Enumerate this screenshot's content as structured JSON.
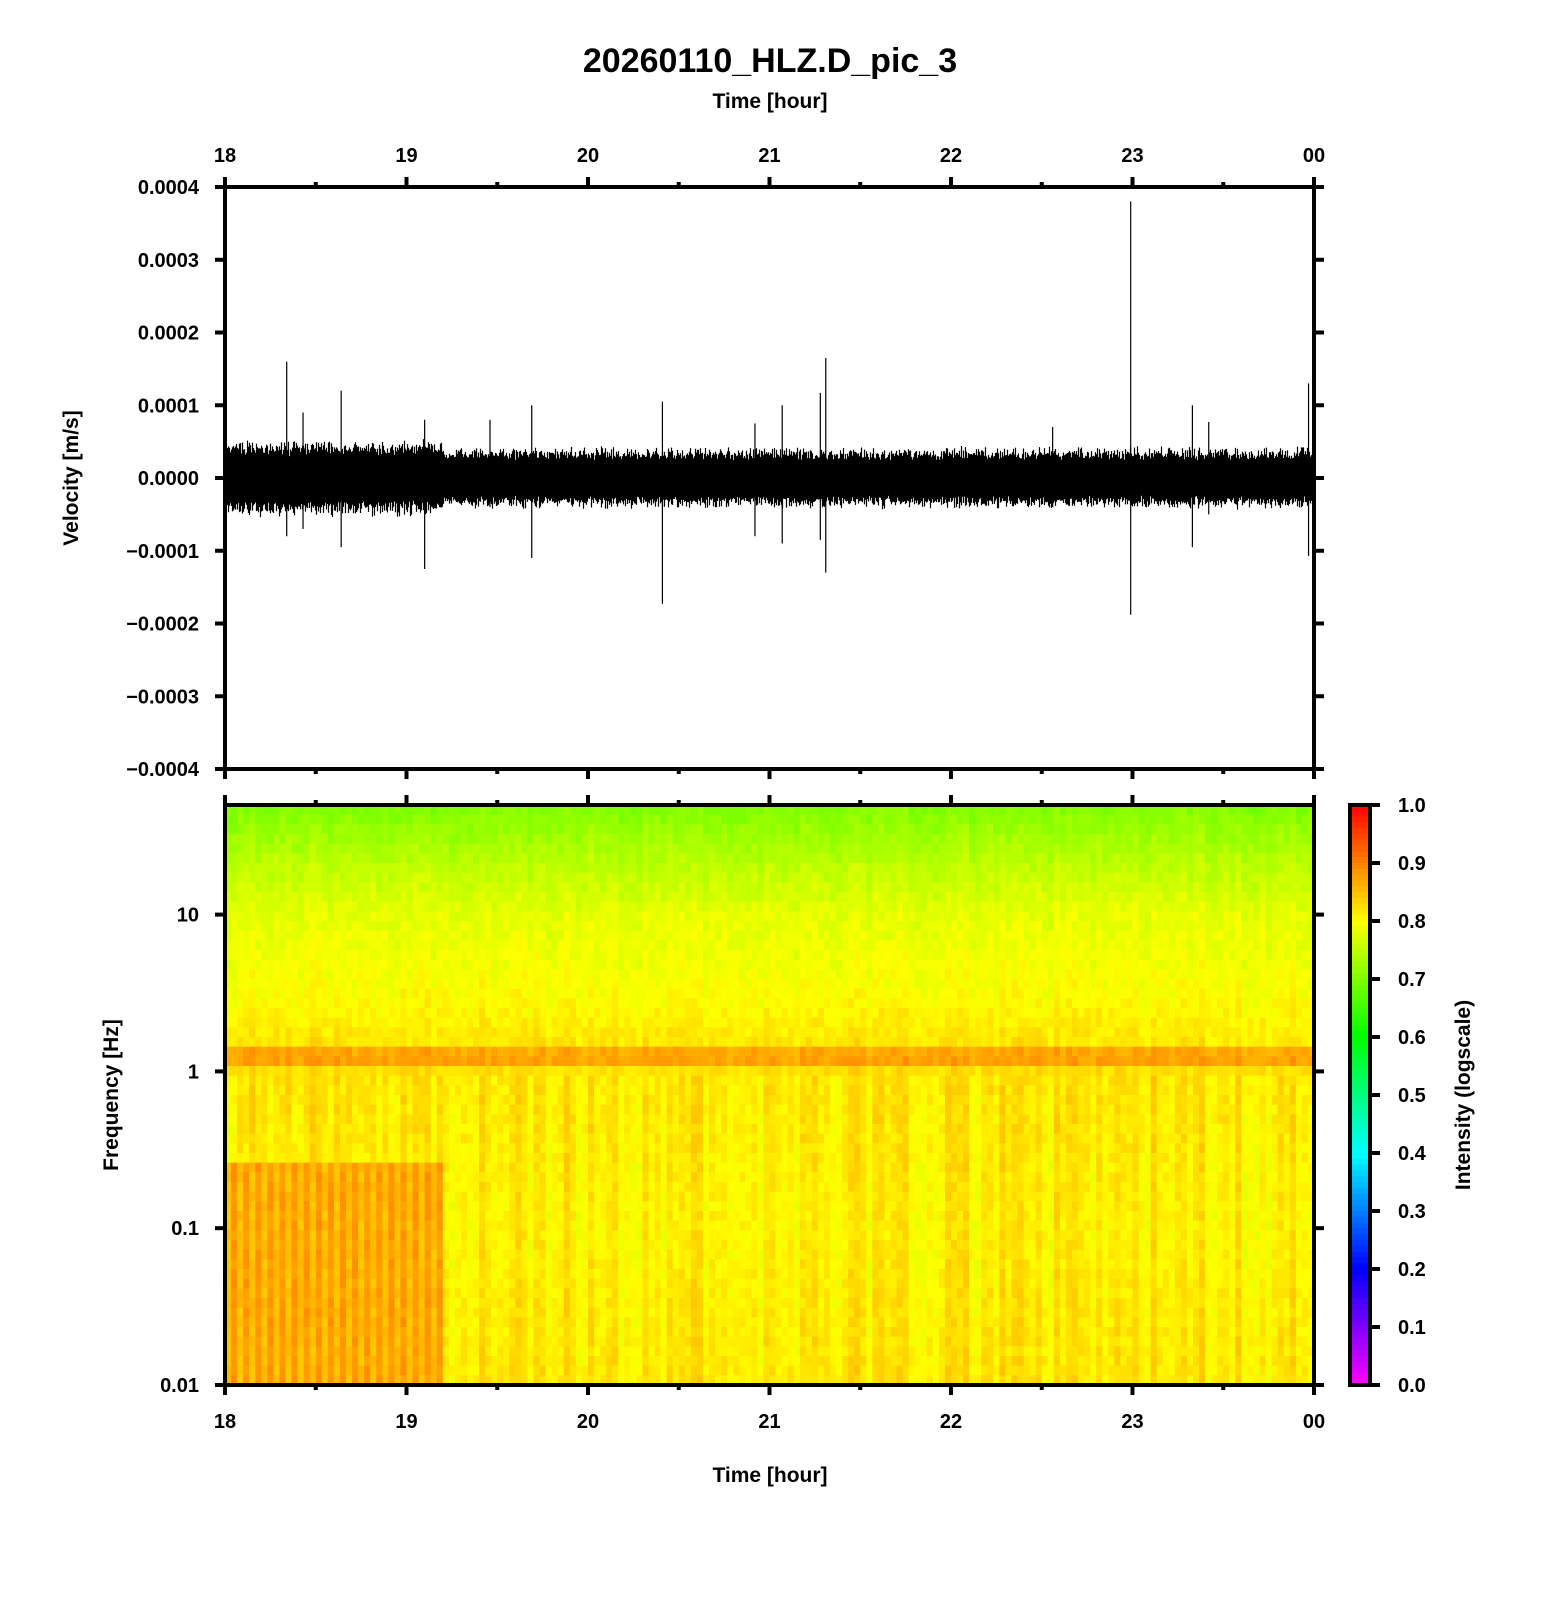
{
  "chart_data": [
    {
      "type": "line",
      "title": "20260110_HLZ.D_pic_3",
      "xlabel": "Time [hour]",
      "ylabel": "Velocity [m/s]",
      "xlim": [
        18,
        24
      ],
      "ylim": [
        -0.0004,
        0.0004
      ],
      "x_ticks": [
        "18",
        "19",
        "20",
        "21",
        "22",
        "23",
        "00"
      ],
      "y_ticks": [
        "0.0004",
        "0.0003",
        "0.0002",
        "0.0001",
        "0.0000",
        "−0.0001",
        "−0.0002",
        "−0.0003",
        "−0.0004"
      ],
      "y_tick_values": [
        0.0004,
        0.0003,
        0.0002,
        0.0001,
        0,
        -0.0001,
        -0.0002,
        -0.0003,
        -0.0004
      ],
      "noise_amplitude": [
        {
          "from": 18.0,
          "to": 19.2,
          "amp": 5e-05
        },
        {
          "from": 19.2,
          "to": 24.0,
          "amp": 4e-05
        }
      ],
      "spikes": [
        {
          "t": 18.34,
          "max": 0.00016,
          "min": -8e-05
        },
        {
          "t": 18.43,
          "max": 9e-05,
          "min": -7e-05
        },
        {
          "t": 18.64,
          "max": 0.00012,
          "min": -9.5e-05
        },
        {
          "t": 19.1,
          "max": 8e-05,
          "min": -0.000125
        },
        {
          "t": 19.46,
          "max": 8e-05,
          "min": -4e-05
        },
        {
          "t": 19.69,
          "max": 0.0001,
          "min": -0.00011
        },
        {
          "t": 20.41,
          "max": 0.000105,
          "min": -0.000173
        },
        {
          "t": 20.92,
          "max": 7.5e-05,
          "min": -8e-05
        },
        {
          "t": 21.07,
          "max": 0.0001,
          "min": -9e-05
        },
        {
          "t": 21.28,
          "max": 0.000117,
          "min": -8.5e-05
        },
        {
          "t": 21.31,
          "max": 0.000165,
          "min": -0.00013
        },
        {
          "t": 22.56,
          "max": 7e-05,
          "min": -4e-05
        },
        {
          "t": 22.99,
          "max": 0.00038,
          "min": -0.000188
        },
        {
          "t": 23.33,
          "max": 0.0001,
          "min": -9.5e-05
        },
        {
          "t": 23.42,
          "max": 7.7e-05,
          "min": -5e-05
        },
        {
          "t": 23.97,
          "max": 0.00013,
          "min": -0.000107
        }
      ]
    },
    {
      "type": "heatmap",
      "xlabel": "Time [hour]",
      "ylabel": "Frequency [Hz]",
      "xlim": [
        18,
        24
      ],
      "ylim": [
        0.01,
        50
      ],
      "y_scale": "log",
      "x_ticks": [
        "18",
        "19",
        "20",
        "21",
        "22",
        "23",
        "00"
      ],
      "y_ticks": [
        "10",
        "1",
        "0.1",
        "0.01"
      ],
      "y_tick_values": [
        10,
        1,
        0.1,
        0.01
      ],
      "colorbar": {
        "label": "Intensity (logscale)",
        "ticks": [
          "1.0",
          "0.9",
          "0.8",
          "0.7",
          "0.6",
          "0.5",
          "0.4",
          "0.3",
          "0.2",
          "0.1",
          "0.0"
        ],
        "range": [
          0,
          1
        ],
        "colormap": [
          {
            "v": 0.0,
            "color": "#ff00ff"
          },
          {
            "v": 0.2,
            "color": "#0000ff"
          },
          {
            "v": 0.4,
            "color": "#00ffff"
          },
          {
            "v": 0.6,
            "color": "#00ff00"
          },
          {
            "v": 0.8,
            "color": "#ffff00"
          },
          {
            "v": 1.0,
            "color": "#ff0000"
          }
        ]
      },
      "intensity_profile": [
        {
          "f": 50,
          "v": 0.7
        },
        {
          "f": 20,
          "v": 0.75
        },
        {
          "f": 10,
          "v": 0.78
        },
        {
          "f": 3,
          "v": 0.8
        },
        {
          "f": 1.5,
          "v": 0.82
        },
        {
          "f": 1.3,
          "v": 0.88
        },
        {
          "f": 1.1,
          "v": 0.87
        },
        {
          "f": 1.0,
          "v": 0.82
        },
        {
          "f": 0.1,
          "v": 0.81
        },
        {
          "f": 0.01,
          "v": 0.82
        }
      ],
      "early_enhancement": {
        "from": 18.0,
        "to": 19.2,
        "fmax": 0.28,
        "v": 0.86
      }
    }
  ]
}
